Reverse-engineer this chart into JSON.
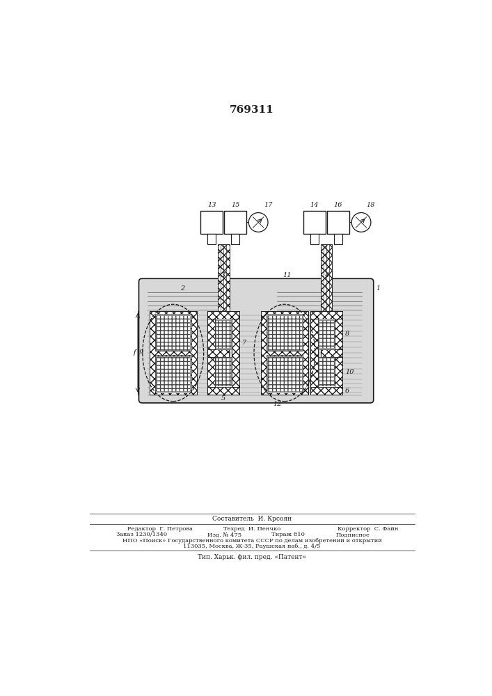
{
  "patent_number": "769311",
  "line_color": "#1a1a1a",
  "footer_lines": [
    "Составитель  И. Крсоян",
    "Редактор  Г. Петрова        Техред  И. Пенчко           Корректор  С. Файн",
    "Заказ 1230/1340           Изд. № 475           Тираж 810           Подписное",
    "НПО «Поиск» Государственного комитета СССР по делам изобретений и открытий",
    "113035, Москва, Ж-35, Раушская наб., д. 4/5",
    "Тип. Харьк. фил. пред. «Патент»"
  ]
}
